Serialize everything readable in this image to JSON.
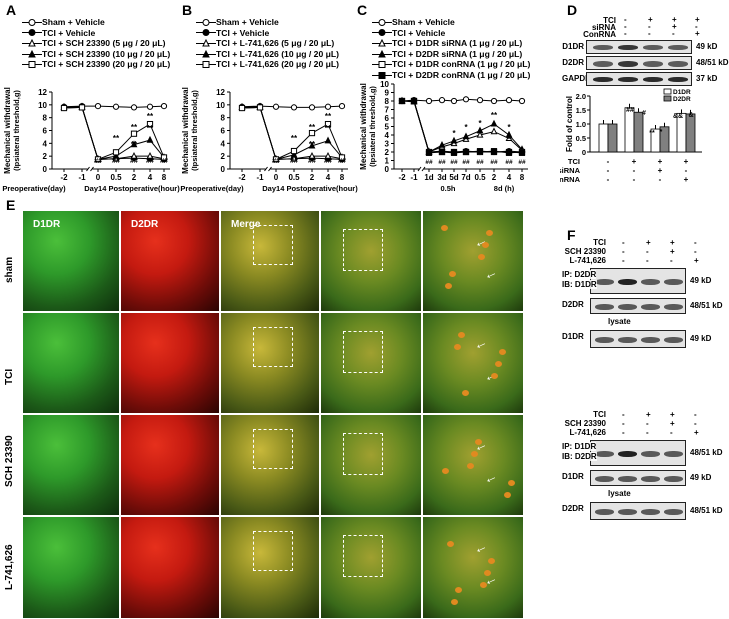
{
  "panels": {
    "A": "A",
    "B": "B",
    "C": "C",
    "D": "D",
    "E": "E",
    "F": "F"
  },
  "chart_data": [
    {
      "type": "line",
      "panel": "A",
      "ylabel": "Mechanical withdrawal (Ipsiateral threshold,g)",
      "ylim": [
        0,
        12
      ],
      "yticks": [
        "0",
        "2",
        "4",
        "6",
        "8",
        "10",
        "12"
      ],
      "xticks": [
        "-2",
        "-1",
        "0",
        "0.5",
        "2",
        "4",
        "8"
      ],
      "xgroup_left": "Preoperative(day)",
      "xgroup_right": "Day14 Postoperative(hour)",
      "legend": [
        "Sham + Vehicle",
        "TCI + Vehicle",
        "TCI + SCH 23390 (5 μg / 20 μL)",
        "TCI + SCH 23390 (10 μg / 20 μL)",
        "TCI + SCH 23390 (20 μg / 20 μL)"
      ],
      "series": [
        {
          "name": "Sham + Vehicle",
          "marker": "circle-open",
          "values": [
            9.7,
            9.8,
            9.8,
            9.7,
            9.6,
            9.7,
            9.8
          ]
        },
        {
          "name": "TCI + Vehicle",
          "marker": "circle-filled",
          "values": [
            9.5,
            9.6,
            1.5,
            1.6,
            1.7,
            1.6,
            1.5
          ]
        },
        {
          "name": "TCI + SCH 23390 (5 μg / 20 μL)",
          "marker": "triangle-open",
          "values": [
            9.6,
            9.7,
            1.5,
            1.6,
            2.0,
            2.0,
            1.6
          ]
        },
        {
          "name": "TCI + SCH 23390 (10 μg / 20 μL)",
          "marker": "triangle-filled",
          "values": [
            9.6,
            9.6,
            1.5,
            2.0,
            3.8,
            4.5,
            1.8
          ]
        },
        {
          "name": "TCI + SCH 23390 (20 μg / 20 μL)",
          "marker": "square-open",
          "values": [
            9.5,
            9.6,
            1.5,
            2.6,
            5.5,
            7.0,
            1.8
          ]
        }
      ],
      "annotations": [
        "**",
        "**",
        "**",
        "**",
        "**",
        "##",
        "##",
        "##",
        "##",
        "##"
      ]
    },
    {
      "type": "line",
      "panel": "B",
      "ylabel": "Mechanical withdrawal (Ipsiateral threshold,g)",
      "ylim": [
        0,
        12
      ],
      "yticks": [
        "0",
        "2",
        "4",
        "6",
        "8",
        "10",
        "12"
      ],
      "xticks": [
        "-2",
        "-1",
        "0",
        "0.5",
        "2",
        "4",
        "8"
      ],
      "xgroup_left": "Preoperative(day)",
      "xgroup_right": "Day14 Postoperative(hour)",
      "legend": [
        "Sham + Vehicle",
        "TCI + Vehicle",
        "TCI + L-741,626 (5 μg / 20 μL)",
        "TCI + L-741,626 (10 μg / 20 μL)",
        "TCI + L-741,626 (20 μg / 20 μL)"
      ],
      "series": [
        {
          "name": "Sham + Vehicle",
          "marker": "circle-open",
          "values": [
            9.7,
            9.8,
            9.7,
            9.6,
            9.6,
            9.7,
            9.8
          ]
        },
        {
          "name": "TCI + Vehicle",
          "marker": "circle-filled",
          "values": [
            9.5,
            9.6,
            1.5,
            1.6,
            1.7,
            1.6,
            1.5
          ]
        },
        {
          "name": "TCI + L-741,626 (5 μg / 20 μL)",
          "marker": "triangle-open",
          "values": [
            9.6,
            9.7,
            1.5,
            1.6,
            2.0,
            2.0,
            1.6
          ]
        },
        {
          "name": "TCI + L-741,626 (10 μg / 20 μL)",
          "marker": "triangle-filled",
          "values": [
            9.6,
            9.6,
            1.5,
            2.2,
            3.6,
            4.4,
            1.8
          ]
        },
        {
          "name": "TCI + L-741,626 (20 μg / 20 μL)",
          "marker": "square-open",
          "values": [
            9.5,
            9.6,
            1.5,
            2.8,
            5.6,
            7.0,
            1.8
          ]
        }
      ],
      "annotations": [
        "**",
        "**",
        "**",
        "**",
        "**",
        "##",
        "##",
        "##",
        "##",
        "##"
      ]
    },
    {
      "type": "line",
      "panel": "C",
      "ylabel": "Mechanical withdrawal (Ipsiateral threshold,g)",
      "ylim": [
        0,
        10
      ],
      "yticks": [
        "0",
        "1",
        "2",
        "3",
        "4",
        "5",
        "6",
        "7",
        "8",
        "9",
        "10"
      ],
      "xticks": [
        "-2",
        "-1",
        "1d",
        "3d",
        "5d",
        "7d",
        "0.5",
        "2",
        "4",
        "8"
      ],
      "xgroup_left": "0.5h",
      "xgroup_right": "8d (h)",
      "legend": [
        "Sham + Vehicle",
        "TCI + Vehicle",
        "TCI + D1DR siRNA (1 μg / 20 μL)",
        "TCI + D2DR siRNA (1 μg / 20 μL)",
        "TCI + D1DR conRNA (1 μg / 20 μL)",
        "TCI + D2DR conRNA (1 μg / 20 μL)"
      ],
      "series": [
        {
          "name": "Sham + Vehicle",
          "marker": "circle-open",
          "values": [
            8.0,
            8.1,
            8.0,
            8.1,
            8.0,
            8.2,
            8.1,
            8.0,
            8.1,
            8.0
          ]
        },
        {
          "name": "TCI + Vehicle",
          "marker": "circle-filled",
          "values": [
            8.0,
            8.0,
            2.0,
            2.1,
            2.0,
            2.1,
            2.0,
            2.0,
            2.1,
            2.0
          ]
        },
        {
          "name": "TCI + D1DR siRNA (1 μg / 20 μL)",
          "marker": "triangle-open",
          "values": [
            8.0,
            8.0,
            2.0,
            2.6,
            3.0,
            3.5,
            4.0,
            4.4,
            3.6,
            2.2
          ]
        },
        {
          "name": "TCI + D2DR siRNA (1 μg / 20 μL)",
          "marker": "triangle-filled",
          "values": [
            8.0,
            7.9,
            2.0,
            2.8,
            3.3,
            3.8,
            4.5,
            5.3,
            4.0,
            2.3
          ]
        },
        {
          "name": "TCI + D1DR conRNA (1 μg / 20 μL)",
          "marker": "square-open",
          "values": [
            8.0,
            8.0,
            2.0,
            2.0,
            1.9,
            2.0,
            2.0,
            2.1,
            1.9,
            2.0
          ]
        },
        {
          "name": "TCI + D2DR conRNA (1 μg / 20 μL)",
          "marker": "square-filled",
          "values": [
            8.0,
            8.0,
            1.9,
            2.0,
            2.0,
            2.0,
            2.1,
            2.0,
            2.0,
            1.9
          ]
        }
      ],
      "annotations": [
        "*",
        "*",
        "**",
        "*",
        "*",
        "*",
        "##",
        "##",
        "##",
        "##",
        "##",
        "##",
        "##",
        "##"
      ]
    },
    {
      "type": "bar",
      "panel": "D",
      "ylabel": "Fold of control",
      "ylim": [
        0,
        2.0
      ],
      "yticks": [
        "0",
        "0.5",
        "1.0",
        "1.5",
        "2.0"
      ],
      "legend": [
        "D1DR",
        "D2DR"
      ],
      "condition_rows": [
        {
          "name": "TCI",
          "values": [
            "-",
            "+",
            "+",
            "+"
          ]
        },
        {
          "name": "siRNA",
          "values": [
            "-",
            "-",
            "+",
            "-"
          ]
        },
        {
          "name": "ConRNA",
          "values": [
            "-",
            "-",
            "-",
            "+"
          ]
        }
      ],
      "series": [
        {
          "name": "D1DR",
          "color": "#ffffff",
          "values": [
            1.0,
            1.58,
            0.82,
            1.38
          ]
        },
        {
          "name": "D2DR",
          "color": "#808080",
          "values": [
            1.0,
            1.42,
            0.9,
            1.36
          ]
        }
      ],
      "annotations": [
        "##",
        "#",
        "**",
        "*",
        "&&",
        "&"
      ]
    }
  ],
  "western_D": {
    "conditions": [
      {
        "name": "TCI",
        "values": [
          "-",
          "+",
          "+",
          "+"
        ]
      },
      {
        "name": "siRNA",
        "values": [
          "-",
          "-",
          "+",
          "-"
        ]
      },
      {
        "name": "ConRNA",
        "values": [
          "-",
          "-",
          "-",
          "+"
        ]
      }
    ],
    "rows": [
      {
        "name": "D1DR",
        "size": "49 kD"
      },
      {
        "name": "D2DR",
        "size": "48/51 kD"
      },
      {
        "name": "GAPDH",
        "size": "37 kD"
      }
    ]
  },
  "micrographs": {
    "column_titles": [
      "D1DR",
      "D2DR",
      "Merge"
    ],
    "row_labels": [
      "sham",
      "TCI",
      "SCH 23390",
      "L-741,626"
    ]
  },
  "western_F": {
    "top": {
      "conditions": [
        {
          "name": "TCI",
          "values": [
            "-",
            "+",
            "+",
            "-"
          ]
        },
        {
          "name": "SCH 23390",
          "values": [
            "-",
            "-",
            "+",
            "-"
          ]
        },
        {
          "name": "L-741,626",
          "values": [
            "-",
            "-",
            "-",
            "+"
          ]
        }
      ],
      "ip_label": "IP: D2DR",
      "ib_label": "IB: D1DR",
      "ip_size": "49 kD",
      "row2": "D2DR",
      "row2_size": "48/51 kD",
      "lysate": "lysate",
      "row3": "D1DR",
      "row3_size": "49 kD"
    },
    "bottom": {
      "conditions": [
        {
          "name": "TCI",
          "values": [
            "-",
            "+",
            "+",
            "-"
          ]
        },
        {
          "name": "SCH 23390",
          "values": [
            "-",
            "-",
            "+",
            "-"
          ]
        },
        {
          "name": "L-741,626",
          "values": [
            "-",
            "-",
            "-",
            "+"
          ]
        }
      ],
      "ip_label": "IP: D1DR",
      "ib_label": "IB: D2DR",
      "ip_size": "48/51 kD",
      "row2": "D1DR",
      "row2_size": "49 kD",
      "lysate": "lysate",
      "row3": "D2DR",
      "row3_size": "48/51 kD"
    }
  },
  "colors": {
    "green": "#2e9a2a",
    "red": "#c41a10",
    "merge": "#8a8a22"
  }
}
